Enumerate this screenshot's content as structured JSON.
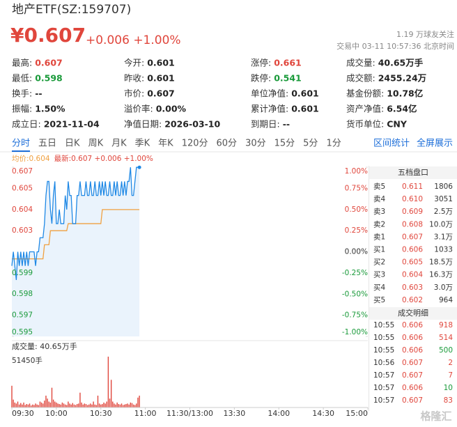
{
  "header": {
    "title": "地产ETF(SZ:159707)",
    "price": "¥0.607",
    "change": "+0.006 +1.00%",
    "followers": "1.19 万球友关注",
    "status": "交易中 03-11 10:57:36 北京时间"
  },
  "stats": [
    [
      {
        "label": "最高:",
        "value": "0.607",
        "color": "#e0463c"
      },
      {
        "label": "今开:",
        "value": "0.601"
      },
      {
        "label": "涨停:",
        "value": "0.661",
        "color": "#e0463c"
      },
      {
        "label": "成交量:",
        "value": "40.65万手"
      }
    ],
    [
      {
        "label": "最低:",
        "value": "0.598",
        "color": "#1a9a3a"
      },
      {
        "label": "昨收:",
        "value": "0.601"
      },
      {
        "label": "跌停:",
        "value": "0.541",
        "color": "#1a9a3a"
      },
      {
        "label": "成交额:",
        "value": "2455.24万"
      }
    ],
    [
      {
        "label": "换手:",
        "value": "--"
      },
      {
        "label": "市价:",
        "value": "0.607"
      },
      {
        "label": "单位净值:",
        "value": "0.601"
      },
      {
        "label": "基金份额:",
        "value": "10.78亿"
      }
    ],
    [
      {
        "label": "振幅:",
        "value": "1.50%"
      },
      {
        "label": "溢价率:",
        "value": "0.00%"
      },
      {
        "label": "累计净值:",
        "value": "0.601"
      },
      {
        "label": "资产净值:",
        "value": "6.54亿"
      }
    ],
    [
      {
        "label": "成立日:",
        "value": "2021-11-04"
      },
      {
        "label": "净值日期:",
        "value": "2026-03-10"
      },
      {
        "label": "到期日:",
        "value": "--"
      },
      {
        "label": "货币单位:",
        "value": "CNY"
      }
    ]
  ],
  "tabs": [
    "分时",
    "五日",
    "日K",
    "周K",
    "月K",
    "季K",
    "年K",
    "120分",
    "60分",
    "30分",
    "15分",
    "5分",
    "1分"
  ],
  "tab_links": [
    "区间统计",
    "全屏展示"
  ],
  "chart_data": [
    {
      "type": "line",
      "legend": [
        {
          "text": "均价:0.604",
          "color": "#f0a040"
        },
        {
          "text": "最新:0.607 +0.006 +1.00%",
          "color": "#e0463c"
        }
      ],
      "x": [
        0,
        1,
        2,
        3,
        4,
        5,
        6,
        7,
        8,
        9,
        10,
        11,
        12,
        13,
        14,
        15,
        16,
        17,
        18,
        19,
        20,
        21,
        22,
        23,
        24,
        25,
        26,
        27,
        28,
        29,
        30,
        31,
        32,
        33,
        34,
        35,
        36,
        37,
        38,
        39,
        40,
        41,
        42,
        43,
        44,
        45,
        46,
        47,
        48,
        49,
        50,
        51,
        52,
        53,
        54,
        55,
        56,
        57,
        58,
        59,
        60,
        61,
        62,
        63,
        64,
        65,
        66,
        67,
        68,
        69,
        70,
        71,
        72,
        73,
        74,
        75,
        76,
        77,
        78,
        79,
        80,
        81,
        82,
        83,
        84,
        85,
        86
      ],
      "series": [
        {
          "color": "#1e88e5",
          "values": [
            0.6,
            0.601,
            0.6,
            0.599,
            0.601,
            0.6,
            0.601,
            0.6,
            0.601,
            0.6,
            0.601,
            0.6,
            0.601,
            0.601,
            0.601,
            0.601,
            0.6,
            0.601,
            0.601,
            0.602,
            0.602,
            0.602,
            0.603,
            0.605,
            0.606,
            0.606,
            0.604,
            0.603,
            0.605,
            0.606,
            0.603,
            0.603,
            0.604,
            0.603,
            0.603,
            0.603,
            0.605,
            0.604,
            0.606,
            0.605,
            0.605,
            0.603,
            0.603,
            0.603,
            0.605,
            0.605,
            0.606,
            0.605,
            0.605,
            0.605,
            0.606,
            0.605,
            0.605,
            0.606,
            0.605,
            0.605,
            0.606,
            0.605,
            0.605,
            0.606,
            0.605,
            0.606,
            0.605,
            0.606,
            0.605,
            0.605,
            0.606,
            0.605,
            0.605,
            0.606,
            0.605,
            0.606,
            0.605,
            0.605,
            0.606,
            0.605,
            0.606,
            0.605,
            0.606,
            0.606,
            0.607,
            0.605,
            0.605,
            0.606,
            0.607,
            0.607,
            0.607
          ]
        },
        {
          "color": "#f0a040",
          "values": [
            0.6005,
            0.6005,
            0.6005,
            0.6005,
            0.6005,
            0.6005,
            0.6005,
            0.6005,
            0.6005,
            0.6005,
            0.6005,
            0.6005,
            0.6005,
            0.6005,
            0.6005,
            0.6005,
            0.6005,
            0.6005,
            0.6005,
            0.6005,
            0.6005,
            0.6005,
            0.6015,
            0.6015,
            0.6015,
            0.6015,
            0.6025,
            0.6025,
            0.6025,
            0.6025,
            0.6025,
            0.6025,
            0.6025,
            0.6025,
            0.6025,
            0.6025,
            0.6025,
            0.6025,
            0.603,
            0.603,
            0.603,
            0.603,
            0.603,
            0.603,
            0.603,
            0.603,
            0.603,
            0.603,
            0.603,
            0.603,
            0.603,
            0.603,
            0.603,
            0.603,
            0.603,
            0.603,
            0.603,
            0.603,
            0.603,
            0.603,
            0.603,
            0.604,
            0.604,
            0.604,
            0.604,
            0.604,
            0.604,
            0.604,
            0.604,
            0.604,
            0.604,
            0.604,
            0.604,
            0.604,
            0.604,
            0.604,
            0.604,
            0.604,
            0.604,
            0.604,
            0.604,
            0.604,
            0.604,
            0.604,
            0.604,
            0.604,
            0.604
          ]
        }
      ],
      "fill": "#eaf3fc",
      "xlim": [
        0,
        240
      ],
      "ylim": [
        0.59499,
        0.60701
      ],
      "yticks": [
        {
          "value": 0.60701,
          "label": "0.607"
        },
        {
          "value": 0.6055,
          "label": "0.605"
        },
        {
          "value": 0.604,
          "label": "0.604"
        },
        {
          "value": 0.6025,
          "label": "0.603"
        },
        {
          "value": 0.5995,
          "label": "0.599"
        },
        {
          "value": 0.598,
          "label": "0.598"
        },
        {
          "value": 0.5965,
          "label": "0.597"
        },
        {
          "value": 0.59499,
          "label": "0.595"
        }
      ],
      "y2lim": [
        -1,
        1
      ],
      "y2ticks": [
        {
          "value": 1,
          "label": "1.00%"
        },
        {
          "value": 0.75,
          "label": "0.75%"
        },
        {
          "value": 0.5,
          "label": "0.50%"
        },
        {
          "value": 0.25,
          "label": "0.25%"
        },
        {
          "value": 0,
          "label": "0.00%"
        },
        {
          "value": -0.25,
          "label": "-0.25%"
        },
        {
          "value": -0.5,
          "label": "-0.50%"
        },
        {
          "value": -0.75,
          "label": "-0.75%"
        },
        {
          "value": -1,
          "label": "-1.00%"
        }
      ]
    },
    {
      "type": "bar",
      "title": "成交量: 40.65万手",
      "color": "#e0463c",
      "x": [
        0,
        1,
        2,
        3,
        4,
        5,
        6,
        7,
        8,
        9,
        10,
        11,
        12,
        13,
        14,
        15,
        16,
        17,
        18,
        19,
        20,
        21,
        22,
        23,
        24,
        25,
        26,
        27,
        28,
        29,
        30,
        31,
        32,
        33,
        34,
        35,
        36,
        37,
        38,
        39,
        40,
        41,
        42,
        43,
        44,
        45,
        46,
        47,
        48,
        49,
        50,
        51,
        52,
        53,
        54,
        55,
        56,
        57,
        58,
        59,
        60,
        61,
        62,
        63,
        64,
        65,
        66,
        67,
        68,
        69,
        70,
        71,
        72,
        73,
        74,
        75,
        76,
        77,
        78,
        79,
        80,
        81,
        82,
        83,
        84,
        85,
        86
      ],
      "values": [
        22000,
        8000,
        5000,
        4000,
        6000,
        3000,
        4500,
        3000,
        5000,
        2500,
        3500,
        3000,
        4000,
        2000,
        3000,
        2500,
        4000,
        3000,
        2500,
        6000,
        5000,
        4000,
        7000,
        12000,
        9000,
        6000,
        5000,
        20000,
        8000,
        6000,
        5000,
        4000,
        3500,
        3000,
        5000,
        4000,
        3000,
        2500,
        6000,
        4000,
        3000,
        4500,
        3000,
        2500,
        3500,
        4000,
        15000,
        5000,
        3000,
        4000,
        3500,
        2500,
        3000,
        4000,
        3000,
        6000,
        3000,
        2500,
        12000,
        4000,
        3000,
        3500,
        5000,
        4000,
        6000,
        51450,
        9000,
        28000,
        6000,
        4000,
        3000,
        5000,
        3500,
        3000,
        4000,
        2500,
        3000,
        3500,
        4000,
        3000,
        5000,
        4500,
        3000,
        2500,
        4000,
        10000,
        12000
      ],
      "xlim": [
        0,
        240
      ],
      "xticks": [
        {
          "value": 0,
          "label": "09:30"
        },
        {
          "value": 30,
          "label": "10:00"
        },
        {
          "value": 60,
          "label": "10:30"
        },
        {
          "value": 90,
          "label": "11:00"
        },
        {
          "value": 120,
          "label": "11:30/13:00"
        },
        {
          "value": 150,
          "label": "13:30"
        },
        {
          "value": 180,
          "label": "14:00"
        },
        {
          "value": 210,
          "label": "14:30"
        },
        {
          "value": 240,
          "label": "15:00"
        }
      ],
      "ylim": [
        0,
        51450
      ],
      "yticks": [
        {
          "value": 51450,
          "label": "51450手"
        }
      ]
    }
  ],
  "order_book": {
    "title": "五档盘口",
    "rows": [
      [
        "卖5",
        "0.611",
        "1806"
      ],
      [
        "卖4",
        "0.610",
        "3051"
      ],
      [
        "卖3",
        "0.609",
        "2.5万"
      ],
      [
        "卖2",
        "0.608",
        "10.0万"
      ],
      [
        "卖1",
        "0.607",
        "3.1万"
      ],
      [
        "买1",
        "0.606",
        "1033"
      ],
      [
        "买2",
        "0.605",
        "18.5万"
      ],
      [
        "买3",
        "0.604",
        "16.3万"
      ],
      [
        "买4",
        "0.603",
        "3.0万"
      ],
      [
        "买5",
        "0.602",
        "964"
      ]
    ]
  },
  "trades": {
    "title": "成交明细",
    "rows": [
      {
        "time": "10:55",
        "price": "0.606",
        "volume": "918",
        "color": "#e0463c"
      },
      {
        "time": "10:55",
        "price": "0.606",
        "volume": "514",
        "color": "#e0463c"
      },
      {
        "time": "10:55",
        "price": "0.606",
        "volume": "500",
        "color": "#1a9a3a"
      },
      {
        "time": "10:56",
        "price": "0.607",
        "volume": "2",
        "color": "#e0463c"
      },
      {
        "time": "10:57",
        "price": "0.607",
        "volume": "7",
        "color": "#e0463c"
      },
      {
        "time": "10:57",
        "price": "0.606",
        "volume": "10",
        "color": "#1a9a3a"
      },
      {
        "time": "10:57",
        "price": "0.607",
        "volume": "83",
        "color": "#e0463c"
      }
    ]
  },
  "watermark": "格隆汇"
}
